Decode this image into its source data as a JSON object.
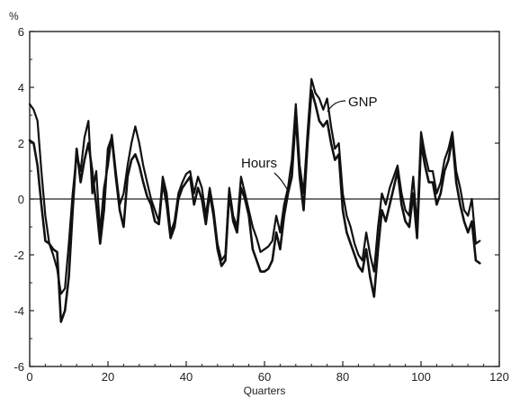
{
  "chart_data": {
    "type": "line",
    "title": "",
    "ylabel": "%",
    "xlabel": "Quarters",
    "xlim": [
      0,
      120
    ],
    "ylim": [
      -6,
      6
    ],
    "x_ticks": [
      0,
      20,
      40,
      60,
      80,
      100,
      120
    ],
    "y_ticks": [
      6,
      4,
      2,
      0,
      -2,
      -4,
      -6
    ],
    "x_tick_labels": [
      "0",
      "20",
      "40",
      "60",
      "80",
      "100",
      "120"
    ],
    "y_tick_labels": [
      "6",
      "4",
      "2",
      "0",
      "-2",
      "-4",
      "-6"
    ],
    "zero_line": true,
    "grid": false,
    "legend": "none",
    "annotations": [
      {
        "text": "GNP",
        "series": "GNP"
      },
      {
        "text": "Hours",
        "series": "Hours"
      }
    ],
    "series": [
      {
        "name": "GNP",
        "color": "#111111",
        "points": [
          [
            0,
            3.4
          ],
          [
            1,
            3.2
          ],
          [
            2,
            2.8
          ],
          [
            3,
            1.0
          ],
          [
            4,
            -0.6
          ],
          [
            5,
            -1.6
          ],
          [
            6,
            -2.0
          ],
          [
            7,
            -2.5
          ],
          [
            8,
            -3.4
          ],
          [
            9,
            -3.2
          ],
          [
            10,
            -1.6
          ],
          [
            11,
            0.2
          ],
          [
            12,
            1.6
          ],
          [
            13,
            1.0
          ],
          [
            14,
            2.2
          ],
          [
            15,
            2.8
          ],
          [
            16,
            0.2
          ],
          [
            17,
            1.0
          ],
          [
            18,
            -1.2
          ],
          [
            19,
            0.4
          ],
          [
            20,
            1.2
          ],
          [
            21,
            2.3
          ],
          [
            22,
            1.0
          ],
          [
            23,
            -0.2
          ],
          [
            24,
            0.2
          ],
          [
            25,
            1.2
          ],
          [
            26,
            2.0
          ],
          [
            27,
            2.6
          ],
          [
            28,
            2.0
          ],
          [
            29,
            1.2
          ],
          [
            30,
            0.6
          ],
          [
            31,
            0.0
          ],
          [
            32,
            -0.4
          ],
          [
            33,
            -0.8
          ],
          [
            34,
            0.8
          ],
          [
            35,
            0.2
          ],
          [
            36,
            -1.2
          ],
          [
            37,
            -0.8
          ],
          [
            38,
            0.2
          ],
          [
            39,
            0.6
          ],
          [
            40,
            0.9
          ],
          [
            41,
            1.0
          ],
          [
            42,
            0.2
          ],
          [
            43,
            0.8
          ],
          [
            44,
            0.4
          ],
          [
            45,
            -0.6
          ],
          [
            46,
            0.4
          ],
          [
            47,
            -0.4
          ],
          [
            48,
            -1.6
          ],
          [
            49,
            -2.2
          ],
          [
            50,
            -2.0
          ],
          [
            51,
            0.4
          ],
          [
            52,
            -0.6
          ],
          [
            53,
            -1.0
          ],
          [
            54,
            0.8
          ],
          [
            55,
            0.2
          ],
          [
            56,
            -0.4
          ],
          [
            57,
            -1.0
          ],
          [
            58,
            -1.4
          ],
          [
            59,
            -1.9
          ],
          [
            60,
            -1.8
          ],
          [
            61,
            -1.7
          ],
          [
            62,
            -1.5
          ],
          [
            63,
            -0.6
          ],
          [
            64,
            -1.2
          ],
          [
            65,
            -0.2
          ],
          [
            66,
            0.4
          ],
          [
            67,
            1.4
          ],
          [
            68,
            3.4
          ],
          [
            69,
            1.2
          ],
          [
            70,
            0.2
          ],
          [
            71,
            2.4
          ],
          [
            72,
            4.3
          ],
          [
            73,
            3.8
          ],
          [
            74,
            3.6
          ],
          [
            75,
            3.2
          ],
          [
            76,
            3.6
          ],
          [
            77,
            2.6
          ],
          [
            78,
            1.8
          ],
          [
            79,
            2.0
          ],
          [
            80,
            0.2
          ],
          [
            81,
            -0.6
          ],
          [
            82,
            -1.0
          ],
          [
            83,
            -1.6
          ],
          [
            84,
            -2.0
          ],
          [
            85,
            -2.2
          ],
          [
            86,
            -1.2
          ],
          [
            87,
            -2.0
          ],
          [
            88,
            -2.6
          ],
          [
            89,
            -1.0
          ],
          [
            90,
            0.2
          ],
          [
            91,
            -0.2
          ],
          [
            92,
            0.4
          ],
          [
            93,
            0.8
          ],
          [
            94,
            1.2
          ],
          [
            95,
            0.2
          ],
          [
            96,
            -0.4
          ],
          [
            97,
            -0.6
          ],
          [
            98,
            0.8
          ],
          [
            99,
            -1.0
          ],
          [
            100,
            2.4
          ],
          [
            101,
            1.6
          ],
          [
            102,
            1.0
          ],
          [
            103,
            1.0
          ],
          [
            104,
            0.2
          ],
          [
            105,
            0.6
          ],
          [
            106,
            1.4
          ],
          [
            107,
            1.8
          ],
          [
            108,
            2.4
          ],
          [
            109,
            1.0
          ],
          [
            110,
            0.4
          ],
          [
            111,
            -0.4
          ],
          [
            112,
            -0.6
          ],
          [
            113,
            0.0
          ],
          [
            114,
            -1.6
          ],
          [
            115,
            -1.5
          ]
        ]
      },
      {
        "name": "Hours",
        "color": "#111111",
        "points": [
          [
            0,
            2.1
          ],
          [
            1,
            2.0
          ],
          [
            2,
            1.2
          ],
          [
            3,
            -0.2
          ],
          [
            4,
            -1.5
          ],
          [
            5,
            -1.6
          ],
          [
            6,
            -1.8
          ],
          [
            7,
            -1.9
          ],
          [
            8,
            -4.4
          ],
          [
            9,
            -4.0
          ],
          [
            10,
            -2.8
          ],
          [
            11,
            -0.4
          ],
          [
            12,
            1.8
          ],
          [
            13,
            0.6
          ],
          [
            14,
            1.4
          ],
          [
            15,
            2.0
          ],
          [
            16,
            1.0
          ],
          [
            17,
            -0.2
          ],
          [
            18,
            -1.6
          ],
          [
            19,
            -0.4
          ],
          [
            20,
            1.8
          ],
          [
            21,
            2.2
          ],
          [
            22,
            0.8
          ],
          [
            23,
            -0.4
          ],
          [
            24,
            -1.0
          ],
          [
            25,
            0.8
          ],
          [
            26,
            1.4
          ],
          [
            27,
            1.6
          ],
          [
            28,
            1.2
          ],
          [
            29,
            0.6
          ],
          [
            30,
            0.1
          ],
          [
            31,
            -0.2
          ],
          [
            32,
            -0.8
          ],
          [
            33,
            -0.9
          ],
          [
            34,
            0.6
          ],
          [
            35,
            -0.2
          ],
          [
            36,
            -1.4
          ],
          [
            37,
            -1.0
          ],
          [
            38,
            0.0
          ],
          [
            39,
            0.4
          ],
          [
            40,
            0.6
          ],
          [
            41,
            0.8
          ],
          [
            42,
            -0.2
          ],
          [
            43,
            0.4
          ],
          [
            44,
            0.0
          ],
          [
            45,
            -0.9
          ],
          [
            46,
            0.2
          ],
          [
            47,
            -0.6
          ],
          [
            48,
            -1.8
          ],
          [
            49,
            -2.4
          ],
          [
            50,
            -2.2
          ],
          [
            51,
            0.2
          ],
          [
            52,
            -0.8
          ],
          [
            53,
            -1.2
          ],
          [
            54,
            0.4
          ],
          [
            55,
            0.0
          ],
          [
            56,
            -0.6
          ],
          [
            57,
            -1.8
          ],
          [
            58,
            -2.2
          ],
          [
            59,
            -2.6
          ],
          [
            60,
            -2.6
          ],
          [
            61,
            -2.5
          ],
          [
            62,
            -2.2
          ],
          [
            63,
            -1.2
          ],
          [
            64,
            -1.8
          ],
          [
            65,
            -0.6
          ],
          [
            66,
            0.2
          ],
          [
            67,
            0.8
          ],
          [
            68,
            3.0
          ],
          [
            69,
            0.8
          ],
          [
            70,
            -0.4
          ],
          [
            71,
            2.0
          ],
          [
            72,
            3.9
          ],
          [
            73,
            3.4
          ],
          [
            74,
            2.8
          ],
          [
            75,
            2.6
          ],
          [
            76,
            2.8
          ],
          [
            77,
            2.0
          ],
          [
            78,
            1.4
          ],
          [
            79,
            1.6
          ],
          [
            80,
            -0.4
          ],
          [
            81,
            -1.2
          ],
          [
            82,
            -1.6
          ],
          [
            83,
            -2.0
          ],
          [
            84,
            -2.4
          ],
          [
            85,
            -2.6
          ],
          [
            86,
            -1.8
          ],
          [
            87,
            -2.8
          ],
          [
            88,
            -3.5
          ],
          [
            89,
            -1.8
          ],
          [
            90,
            -0.4
          ],
          [
            91,
            -0.8
          ],
          [
            92,
            -0.2
          ],
          [
            93,
            0.4
          ],
          [
            94,
            1.0
          ],
          [
            95,
            -0.2
          ],
          [
            96,
            -0.8
          ],
          [
            97,
            -1.0
          ],
          [
            98,
            0.2
          ],
          [
            99,
            -1.4
          ],
          [
            100,
            2.0
          ],
          [
            101,
            1.2
          ],
          [
            102,
            0.6
          ],
          [
            103,
            0.6
          ],
          [
            104,
            -0.2
          ],
          [
            105,
            0.2
          ],
          [
            106,
            1.0
          ],
          [
            107,
            1.4
          ],
          [
            108,
            2.2
          ],
          [
            109,
            0.6
          ],
          [
            110,
            -0.2
          ],
          [
            111,
            -0.8
          ],
          [
            112,
            -1.2
          ],
          [
            113,
            -0.8
          ],
          [
            114,
            -2.2
          ],
          [
            115,
            -2.3
          ]
        ]
      }
    ]
  }
}
